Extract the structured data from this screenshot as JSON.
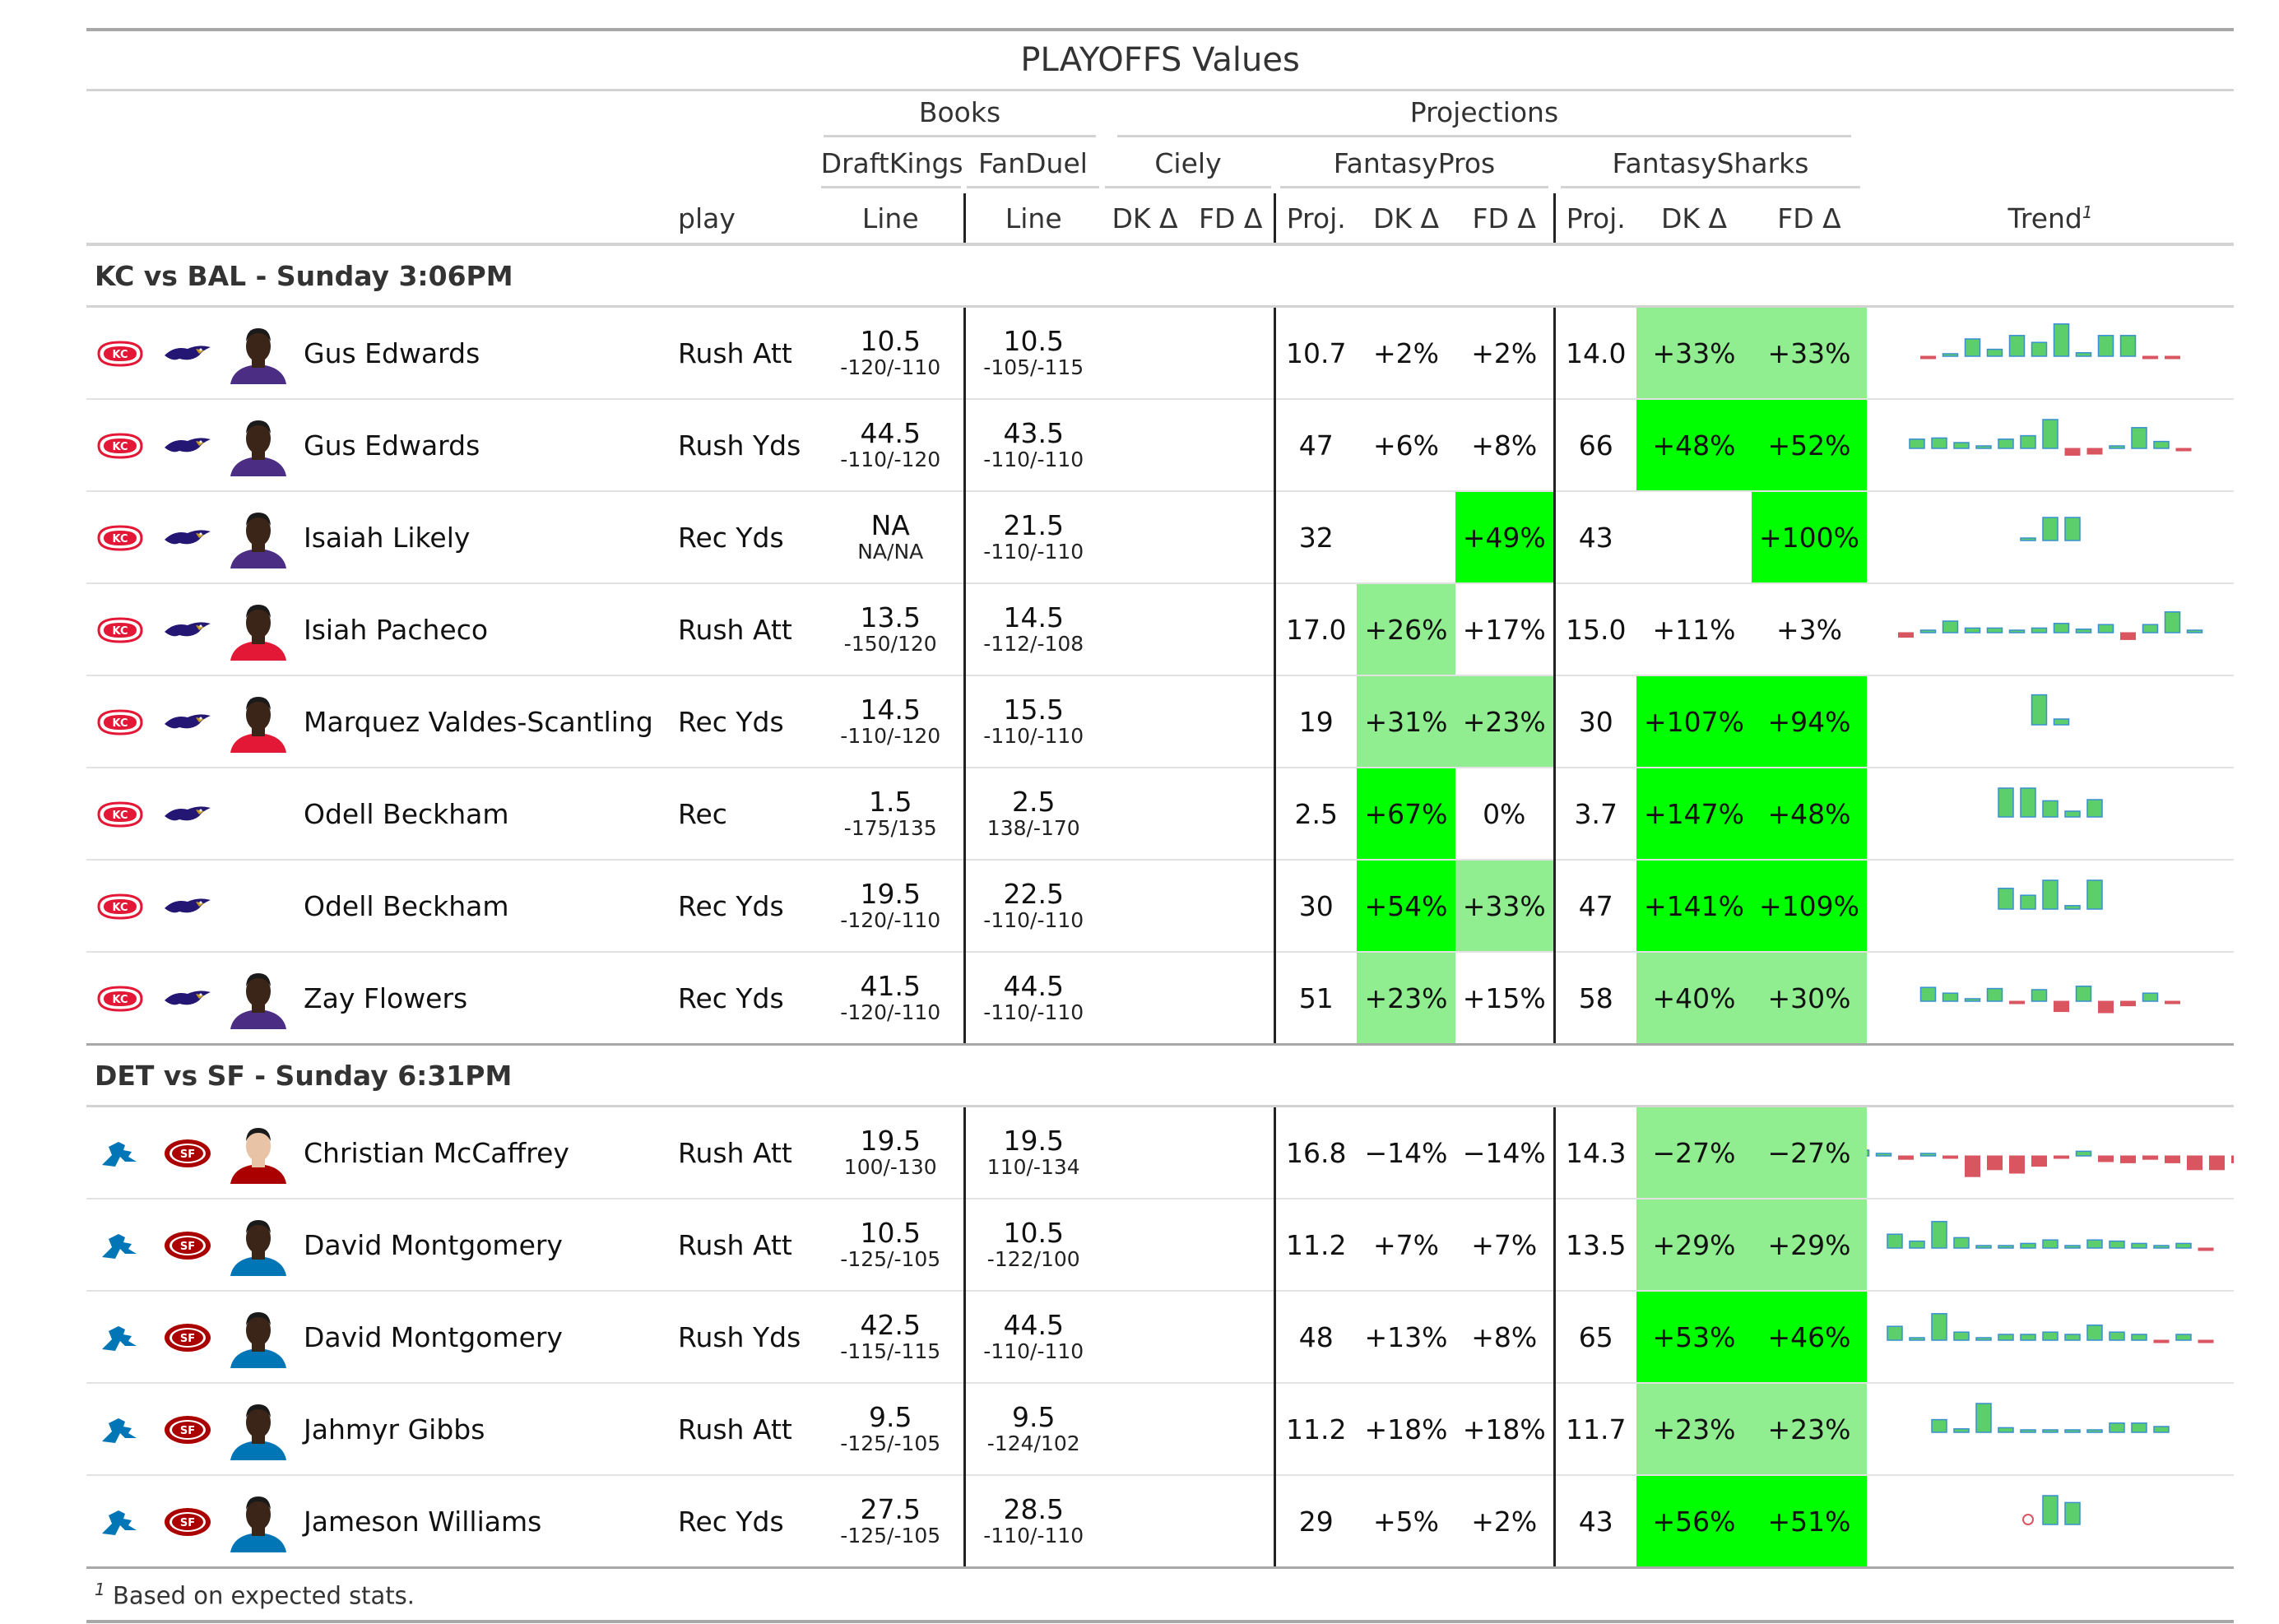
{
  "title": "PLAYOFFS Values",
  "spanners": {
    "books": "Books",
    "projections": "Projections",
    "draftkings": "DraftKings",
    "fanduel": "FanDuel",
    "ciely": "Ciely",
    "fantasypros": "FantasyPros",
    "fantasysharks": "FantasySharks"
  },
  "columns": {
    "play": "play",
    "dk_line": "Line",
    "fd_line": "Line",
    "ciely_dk": "DK Δ",
    "ciely_fd": "FD Δ",
    "fp_proj": "Proj.",
    "fp_dk": "DK Δ",
    "fp_fd": "FD Δ",
    "fs_proj": "Proj.",
    "fs_dk": "DK Δ",
    "fs_fd": "FD Δ",
    "trend": "Trend",
    "trend_note": "1"
  },
  "colors": {
    "strong_green": "#00ff00",
    "light_green": "#90ee90",
    "bar_pos": "#5ccf6b",
    "bar_pos_stroke": "#3a8fd0",
    "bar_neg": "#d95560",
    "chiefs_red": "#e31837",
    "ravens_purple": "#241773",
    "lions_blue": "#0076b6",
    "niners_red": "#aa0000"
  },
  "groups": [
    {
      "label": "KC vs BAL - Sunday 3:06PM",
      "logos": [
        "chiefs-logo-icon",
        "ravens-logo-icon"
      ],
      "rows": [
        {
          "name": "Gus Edwards",
          "photo": "player-photo-icon",
          "jersey": "#4b2e83",
          "skin": "#3b2418",
          "play": "Rush Att",
          "dk_line": "10.5",
          "dk_odds": "-120/-110",
          "fd_line": "10.5",
          "fd_odds": "-105/-115",
          "fp_proj": "10.7",
          "fp_dk": "+2%",
          "fp_fd": "+2%",
          "fs_proj": "14.0",
          "fs_dk": "+33%",
          "fs_fd": "+33%",
          "shade": [
            "",
            "",
            "light",
            "light"
          ],
          "trend": [
            -0.2,
            0.2,
            1.5,
            0.6,
            1.8,
            1.2,
            2.8,
            0.3,
            1.8,
            1.8,
            -0.2,
            -0.2
          ],
          "tscale": 3
        },
        {
          "name": "Gus Edwards",
          "photo": "player-photo-icon",
          "jersey": "#4b2e83",
          "skin": "#3b2418",
          "play": "Rush Yds",
          "dk_line": "44.5",
          "dk_odds": "-110/-120",
          "fd_line": "43.5",
          "fd_odds": "-110/-110",
          "fp_proj": "47",
          "fp_dk": "+6%",
          "fp_fd": "+8%",
          "fs_proj": "66",
          "fs_dk": "+48%",
          "fs_fd": "+52%",
          "shade": [
            "",
            "",
            "strong",
            "strong"
          ],
          "trend": [
            0.8,
            0.9,
            0.5,
            0.2,
            0.8,
            1.1,
            2.5,
            -0.6,
            -0.5,
            0.2,
            1.8,
            0.6,
            -0.1
          ],
          "tscale": 3
        },
        {
          "name": "Isaiah Likely",
          "photo": "player-photo-icon",
          "jersey": "#4b2e83",
          "skin": "#3b2418",
          "play": "Rec Yds",
          "dk_line": "NA",
          "dk_odds": "NA/NA",
          "fd_line": "21.5",
          "fd_odds": "-110/-110",
          "fp_proj": "32",
          "fp_dk": "",
          "fp_fd": "+49%",
          "fs_proj": "43",
          "fs_dk": "",
          "fs_fd": "+100%",
          "shade": [
            "",
            "strong",
            "",
            "strong"
          ],
          "trend": [
            0.2,
            2.0,
            2.0
          ],
          "tscale": 2.2
        },
        {
          "name": "Isiah Pacheco",
          "photo": "player-photo-icon",
          "jersey": "#e31837",
          "skin": "#3b2418",
          "play": "Rush Att",
          "dk_line": "13.5",
          "dk_odds": "-150/120",
          "fd_line": "14.5",
          "fd_odds": "-112/-108",
          "fp_proj": "17.0",
          "fp_dk": "+26%",
          "fp_fd": "+17%",
          "fs_proj": "15.0",
          "fs_dk": "+11%",
          "fs_fd": "+3%",
          "shade": [
            "light",
            "",
            "",
            ""
          ],
          "trend": [
            -0.4,
            0.2,
            1.0,
            0.4,
            0.4,
            0.2,
            0.4,
            0.8,
            0.3,
            0.7,
            -0.6,
            0.7,
            1.8,
            0.1
          ],
          "tscale": 2.2
        },
        {
          "name": "Marquez Valdes-Scantling",
          "photo": "player-photo-icon",
          "jersey": "#e31837",
          "skin": "#3b2418",
          "play": "Rec Yds",
          "dk_line": "14.5",
          "dk_odds": "-110/-120",
          "fd_line": "15.5",
          "fd_odds": "-110/-110",
          "fp_proj": "19",
          "fp_dk": "+31%",
          "fp_fd": "+23%",
          "fs_proj": "30",
          "fs_dk": "+107%",
          "fs_fd": "+94%",
          "shade": [
            "light",
            "light",
            "strong",
            "strong"
          ],
          "trend": [
            2.6,
            0.5
          ],
          "tscale": 2.8
        },
        {
          "name": "Odell Beckham",
          "photo": "",
          "jersey": "",
          "skin": "",
          "play": "Rec",
          "dk_line": "1.5",
          "dk_odds": "-175/135",
          "fd_line": "2.5",
          "fd_odds": "138/-170",
          "fp_proj": "2.5",
          "fp_dk": "+67%",
          "fp_fd": "0%",
          "fs_proj": "3.7",
          "fs_dk": "+147%",
          "fs_fd": "+48%",
          "shade": [
            "strong",
            "",
            "strong",
            "strong"
          ],
          "trend": [
            2.5,
            2.5,
            1.4,
            0.5,
            1.5
          ],
          "tscale": 2.6
        },
        {
          "name": "Odell Beckham",
          "photo": "",
          "jersey": "",
          "skin": "",
          "play": "Rec Yds",
          "dk_line": "19.5",
          "dk_odds": "-120/-110",
          "fd_line": "22.5",
          "fd_odds": "-110/-110",
          "fp_proj": "30",
          "fp_dk": "+54%",
          "fp_fd": "+33%",
          "fs_proj": "47",
          "fs_dk": "+141%",
          "fs_fd": "+109%",
          "shade": [
            "strong",
            "light",
            "strong",
            "strong"
          ],
          "trend": [
            1.8,
            1.2,
            2.5,
            0.3,
            2.5
          ],
          "tscale": 2.6
        },
        {
          "name": "Zay Flowers",
          "photo": "player-photo-icon",
          "jersey": "#4b2e83",
          "skin": "#3b2418",
          "play": "Rec Yds",
          "dk_line": "41.5",
          "dk_odds": "-120/-110",
          "fd_line": "44.5",
          "fd_odds": "-110/-110",
          "fp_proj": "51",
          "fp_dk": "+23%",
          "fp_fd": "+15%",
          "fs_proj": "58",
          "fs_dk": "+40%",
          "fs_fd": "+30%",
          "shade": [
            "light",
            "",
            "light",
            "light"
          ],
          "trend": [
            1.2,
            0.7,
            0.2,
            1.1,
            -0.1,
            1.0,
            -0.9,
            1.3,
            -1.0,
            -0.4,
            0.7,
            -0.1
          ],
          "tscale": 2.0
        }
      ]
    },
    {
      "label": "DET vs SF - Sunday 6:31PM",
      "logos": [
        "lions-logo-icon",
        "49ers-logo-icon"
      ],
      "rows": [
        {
          "name": "Christian McCaffrey",
          "photo": "player-photo-icon",
          "jersey": "#aa0000",
          "skin": "#e8c3a6",
          "play": "Rush Att",
          "dk_line": "19.5",
          "dk_odds": "100/-130",
          "fd_line": "19.5",
          "fd_odds": "110/-134",
          "fp_proj": "16.8",
          "fp_dk": "−14%",
          "fp_fd": "−14%",
          "fs_proj": "14.3",
          "fs_dk": "−27%",
          "fs_fd": "−27%",
          "shade": [
            "",
            "",
            "light",
            "light"
          ],
          "trend": [
            0.5,
            0.1,
            -0.3,
            0.1,
            -0.1,
            -1.8,
            -1.2,
            -1.5,
            -0.9,
            -0.2,
            0.4,
            -0.5,
            -0.6,
            -0.3,
            -0.6,
            -1.2,
            -1.2,
            -0.6
          ],
          "tscale": 2.2
        },
        {
          "name": "David Montgomery",
          "photo": "player-photo-icon",
          "jersey": "#0076b6",
          "skin": "#3b2418",
          "play": "Rush Att",
          "dk_line": "10.5",
          "dk_odds": "-125/-105",
          "fd_line": "10.5",
          "fd_odds": "-122/100",
          "fp_proj": "11.2",
          "fp_dk": "+7%",
          "fp_fd": "+7%",
          "fs_proj": "13.5",
          "fs_dk": "+29%",
          "fs_fd": "+29%",
          "shade": [
            "",
            "",
            "light",
            "light"
          ],
          "trend": [
            1.2,
            0.6,
            2.3,
            0.9,
            0.2,
            0.2,
            0.4,
            0.7,
            0.1,
            0.7,
            0.6,
            0.4,
            0.2,
            0.4,
            -0.1
          ],
          "tscale": 2.5
        },
        {
          "name": "David Montgomery",
          "photo": "player-photo-icon",
          "jersey": "#0076b6",
          "skin": "#3b2418",
          "play": "Rush Yds",
          "dk_line": "42.5",
          "dk_odds": "-115/-115",
          "fd_line": "44.5",
          "fd_odds": "-110/-110",
          "fp_proj": "48",
          "fp_dk": "+13%",
          "fp_fd": "+8%",
          "fs_proj": "65",
          "fs_dk": "+53%",
          "fs_fd": "+46%",
          "shade": [
            "",
            "",
            "strong",
            "strong"
          ],
          "trend": [
            1.2,
            0.1,
            2.3,
            0.7,
            0.2,
            0.5,
            0.5,
            0.7,
            0.5,
            1.3,
            0.7,
            0.5,
            -0.2,
            0.5,
            -0.2
          ],
          "tscale": 2.5
        },
        {
          "name": "Jahmyr Gibbs",
          "photo": "player-photo-icon",
          "jersey": "#0076b6",
          "skin": "#3b2418",
          "play": "Rush Att",
          "dk_line": "9.5",
          "dk_odds": "-125/-105",
          "fd_line": "9.5",
          "fd_odds": "-124/102",
          "fp_proj": "11.2",
          "fp_dk": "+18%",
          "fp_fd": "+18%",
          "fs_proj": "11.7",
          "fs_dk": "+23%",
          "fs_fd": "+23%",
          "shade": [
            "",
            "",
            "light",
            "light"
          ],
          "trend": [
            1.1,
            0.3,
            2.5,
            0.4,
            0.2,
            0.2,
            0.2,
            0.2,
            0.8,
            0.8,
            0.5
          ],
          "tscale": 2.7
        },
        {
          "name": "Jameson Williams",
          "photo": "player-photo-icon",
          "jersey": "#0076b6",
          "skin": "#3b2418",
          "play": "Rec Yds",
          "dk_line": "27.5",
          "dk_odds": "-125/-105",
          "fd_line": "28.5",
          "fd_odds": "-110/-110",
          "fp_proj": "29",
          "fp_dk": "+5%",
          "fp_fd": "+2%",
          "fs_proj": "43",
          "fs_dk": "+56%",
          "fs_fd": "+51%",
          "shade": [
            "",
            "",
            "strong",
            "strong"
          ],
          "trend": [
            "o",
            2.5,
            1.9
          ],
          "tscale": 2.7
        }
      ]
    }
  ],
  "footnote": {
    "mark": "1",
    "text": "Based on expected stats."
  }
}
